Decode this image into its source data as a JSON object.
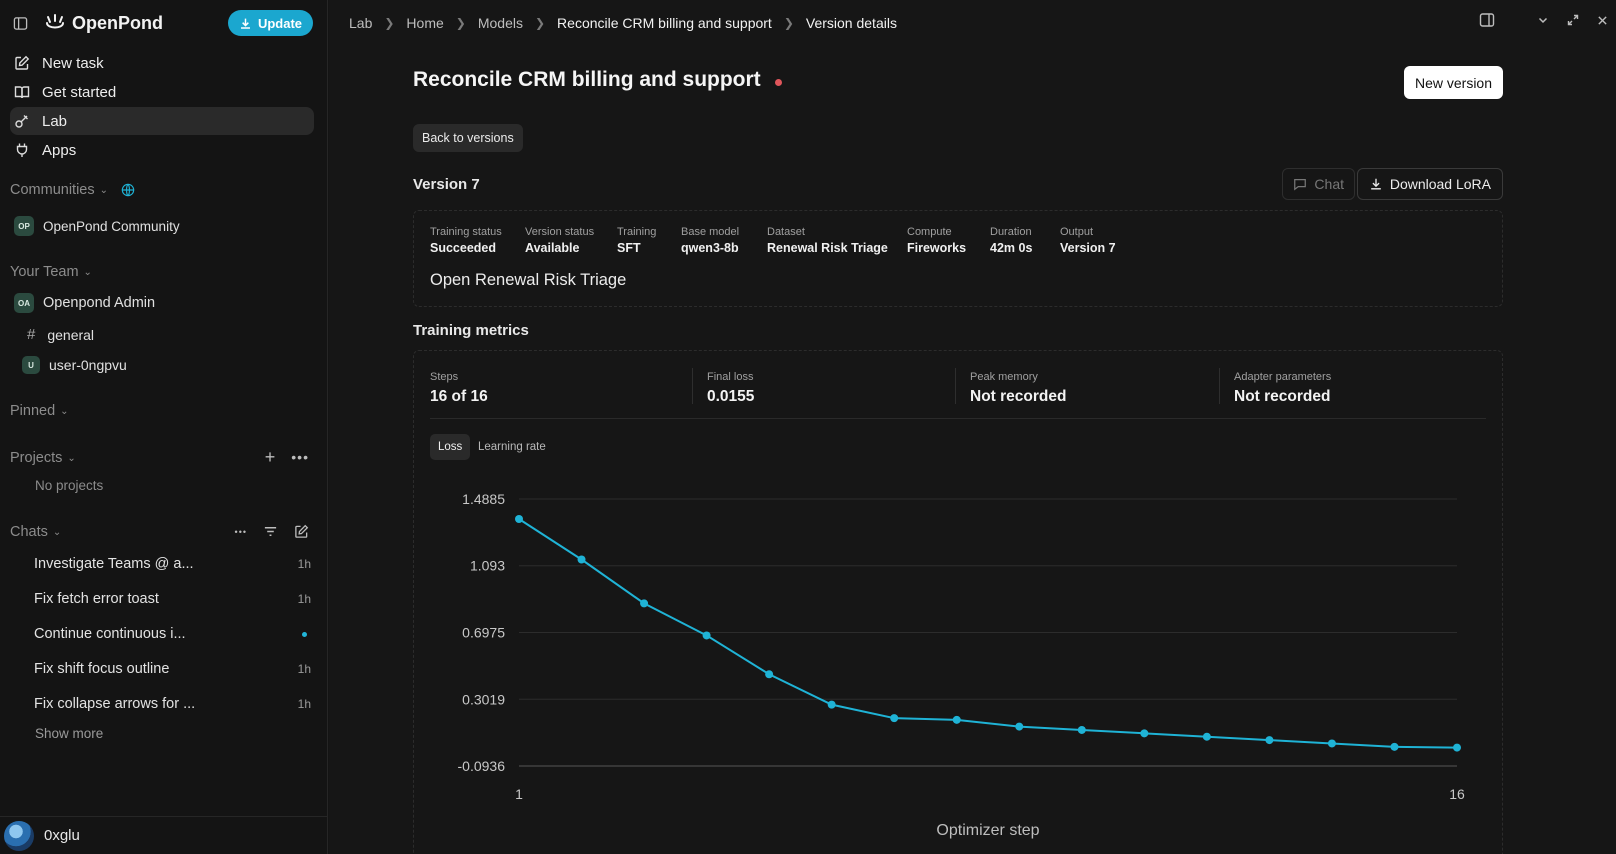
{
  "sidebar": {
    "brand": "OpenPond",
    "update_label": "Update",
    "nav": [
      {
        "label": "New task",
        "icon": "edit-icon"
      },
      {
        "label": "Get started",
        "icon": "book-icon"
      },
      {
        "label": "Lab",
        "icon": "lab-icon",
        "active": true
      },
      {
        "label": "Apps",
        "icon": "plug-icon"
      }
    ],
    "communities_label": "Communities",
    "community": {
      "badge": "OP",
      "name": "OpenPond Community"
    },
    "team_label": "Your Team",
    "team": {
      "badge": "OA",
      "name": "Openpond Admin"
    },
    "channel": {
      "name": "general"
    },
    "member": {
      "badge": "U",
      "name": "user-0ngpvu"
    },
    "pinned_label": "Pinned",
    "projects_label": "Projects",
    "no_projects": "No projects",
    "chats_label": "Chats",
    "chats": [
      {
        "title": "Investigate Teams @ a...",
        "time": "1h"
      },
      {
        "title": "Fix fetch error toast",
        "time": "1h"
      },
      {
        "title": "Continue continuous i...",
        "time": "",
        "unread": true
      },
      {
        "title": "Fix shift focus outline",
        "time": "1h"
      },
      {
        "title": "Fix collapse arrows for ...",
        "time": "1h"
      }
    ],
    "show_more": "Show more",
    "user_name": "0xglu"
  },
  "breadcrumb": [
    "Lab",
    "Home",
    "Models",
    "Reconcile CRM billing and support",
    "Version details"
  ],
  "page": {
    "title": "Reconcile CRM billing and support",
    "new_version": "New version",
    "back": "Back to versions",
    "version_title": "Version 7",
    "chat_label": "Chat",
    "download_label": "Download LoRA",
    "details": [
      {
        "k": "Training status",
        "v": "Succeeded"
      },
      {
        "k": "Version status",
        "v": "Available"
      },
      {
        "k": "Training",
        "v": "SFT"
      },
      {
        "k": "Base model",
        "v": "qwen3-8b"
      },
      {
        "k": "Dataset",
        "v": "Renewal Risk Triage"
      },
      {
        "k": "Compute",
        "v": "Fireworks"
      },
      {
        "k": "Duration",
        "v": "42m 0s"
      },
      {
        "k": "Output",
        "v": "Version 7"
      }
    ],
    "description": "Open Renewal Risk Triage",
    "metrics_title": "Training metrics",
    "stats": [
      {
        "k": "Steps",
        "v": "16 of 16"
      },
      {
        "k": "Final loss",
        "v": "0.0155"
      },
      {
        "k": "Peak memory",
        "v": "Not recorded"
      },
      {
        "k": "Adapter parameters",
        "v": "Not recorded"
      }
    ],
    "tabs": [
      {
        "label": "Loss",
        "active": true
      },
      {
        "label": "Learning rate",
        "active": false
      }
    ]
  },
  "colors": {
    "accent": "#1ba7cf",
    "line": "#1fb3d6",
    "status_dot": "#e0565b"
  },
  "chart_data": {
    "type": "line",
    "xlabel": "Optimizer step",
    "ylabel": "",
    "x_ticks": [
      "1",
      "16"
    ],
    "y_ticks": [
      "1.4885",
      "1.093",
      "0.6975",
      "0.3019",
      "-0.0936"
    ],
    "ylim": [
      -0.0936,
      1.4885
    ],
    "xlim": [
      1,
      16
    ],
    "grid": true,
    "x": [
      1,
      2,
      3,
      4,
      5,
      6,
      7,
      8,
      9,
      10,
      11,
      12,
      13,
      14,
      15,
      16
    ],
    "y": [
      1.37,
      1.13,
      0.87,
      0.68,
      0.45,
      0.27,
      0.19,
      0.18,
      0.14,
      0.12,
      0.1,
      0.08,
      0.06,
      0.04,
      0.02,
      0.0155
    ]
  }
}
